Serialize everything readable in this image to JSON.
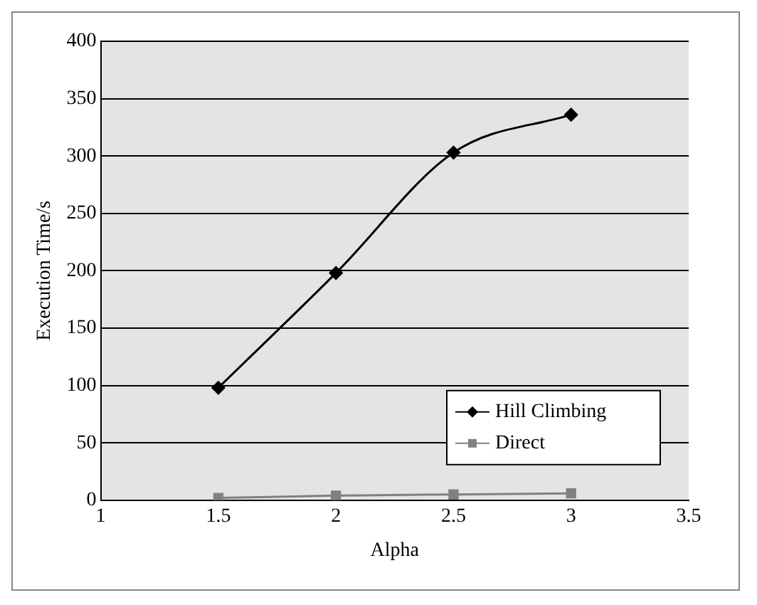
{
  "chart_data": {
    "type": "line",
    "xlabel": "Alpha",
    "ylabel": "Execution Time/s",
    "x": [
      1.5,
      2,
      2.5,
      3
    ],
    "series": [
      {
        "name": "Hill Climbing",
        "color": "#000000",
        "marker": "diamond",
        "values": [
          98,
          198,
          303,
          336
        ]
      },
      {
        "name": "Direct",
        "color": "#808080",
        "marker": "square",
        "values": [
          2,
          4,
          5,
          6
        ]
      }
    ],
    "xlim": [
      1,
      3.5
    ],
    "xticks": [
      1,
      1.5,
      2,
      2.5,
      3,
      3.5
    ],
    "ylim": [
      0,
      400
    ],
    "yticks": [
      0,
      50,
      100,
      150,
      200,
      250,
      300,
      350,
      400
    ],
    "grid": "y",
    "legend": "bottom right"
  }
}
